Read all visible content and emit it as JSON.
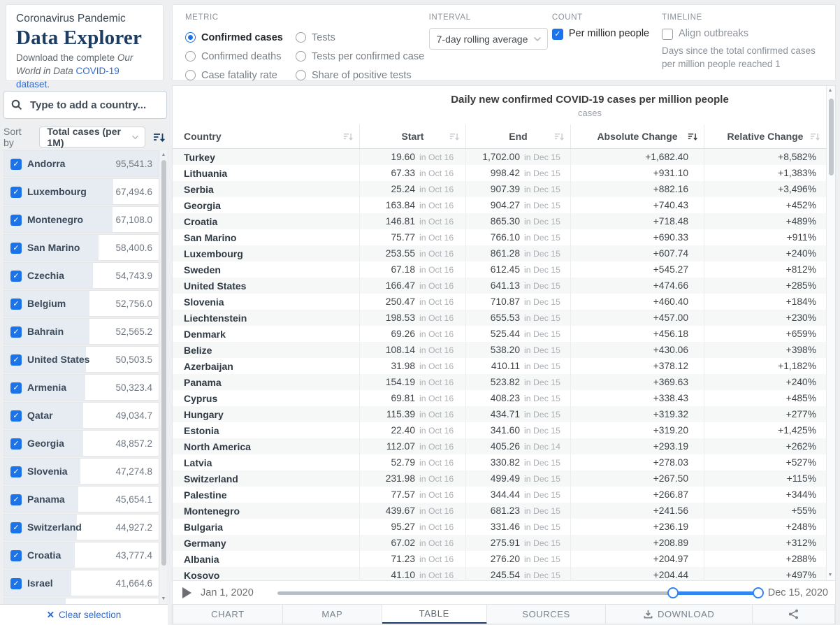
{
  "header": {
    "kicker": "Coronavirus Pandemic",
    "title": "Data Explorer",
    "subtitle": {
      "prefix": "Download the complete ",
      "brand": "Our World in Data",
      "link": "COVID-19 dataset",
      "suffix": "."
    }
  },
  "controls": {
    "metric": {
      "label": "METRIC",
      "options": [
        {
          "label": "Confirmed cases",
          "selected": true
        },
        {
          "label": "Confirmed deaths",
          "selected": false
        },
        {
          "label": "Case fatality rate",
          "selected": false
        },
        {
          "label": "Tests",
          "selected": false
        },
        {
          "label": "Tests per confirmed case",
          "selected": false
        },
        {
          "label": "Share of positive tests",
          "selected": false
        }
      ]
    },
    "interval": {
      "label": "INTERVAL",
      "value": "7-day rolling average"
    },
    "count": {
      "label": "COUNT",
      "checkbox": "Per million people",
      "checked": true
    },
    "timeline": {
      "label": "TIMELINE",
      "checkbox": "Align outbreaks",
      "checked": false,
      "description": "Days since the total confirmed cases per million people reached 1"
    }
  },
  "sidebar": {
    "search_placeholder": "Type to add a country...",
    "sort_by_label": "Sort by",
    "sort_value": "Total cases (per 1M)",
    "countries": [
      {
        "name": "Andorra",
        "value": "95,541.3",
        "checked": true
      },
      {
        "name": "Luxembourg",
        "value": "67,494.6",
        "checked": true
      },
      {
        "name": "Montenegro",
        "value": "67,108.0",
        "checked": true
      },
      {
        "name": "San Marino",
        "value": "58,400.6",
        "checked": true
      },
      {
        "name": "Czechia",
        "value": "54,743.9",
        "checked": true
      },
      {
        "name": "Belgium",
        "value": "52,756.0",
        "checked": true
      },
      {
        "name": "Bahrain",
        "value": "52,565.2",
        "checked": true
      },
      {
        "name": "United States",
        "value": "50,503.5",
        "checked": true
      },
      {
        "name": "Armenia",
        "value": "50,323.4",
        "checked": true
      },
      {
        "name": "Qatar",
        "value": "49,034.7",
        "checked": true
      },
      {
        "name": "Georgia",
        "value": "48,857.2",
        "checked": true
      },
      {
        "name": "Slovenia",
        "value": "47,274.8",
        "checked": true
      },
      {
        "name": "Panama",
        "value": "45,654.1",
        "checked": true
      },
      {
        "name": "Switzerland",
        "value": "44,927.2",
        "checked": true
      },
      {
        "name": "Croatia",
        "value": "43,777.4",
        "checked": true
      },
      {
        "name": "Israel",
        "value": "41,664.6",
        "checked": true
      },
      {
        "name": "",
        "value": "",
        "checked": true
      }
    ],
    "clear_selection": "Clear selection"
  },
  "table": {
    "title": "Daily new confirmed COVID-19 cases per million people",
    "subtitle": "cases",
    "columns": [
      "Country",
      "Start",
      "End",
      "Absolute Change",
      "Relative Change"
    ],
    "rows": [
      {
        "country": "Turkey",
        "start": "19.60",
        "start_date": "in Oct 16",
        "end": "1,702.00",
        "end_date": "in Dec 15",
        "abs": "+1,682.40",
        "rel": "+8,582%"
      },
      {
        "country": "Lithuania",
        "start": "67.33",
        "start_date": "in Oct 16",
        "end": "998.42",
        "end_date": "in Dec 15",
        "abs": "+931.10",
        "rel": "+1,383%"
      },
      {
        "country": "Serbia",
        "start": "25.24",
        "start_date": "in Oct 16",
        "end": "907.39",
        "end_date": "in Dec 15",
        "abs": "+882.16",
        "rel": "+3,496%"
      },
      {
        "country": "Georgia",
        "start": "163.84",
        "start_date": "in Oct 16",
        "end": "904.27",
        "end_date": "in Dec 15",
        "abs": "+740.43",
        "rel": "+452%"
      },
      {
        "country": "Croatia",
        "start": "146.81",
        "start_date": "in Oct 16",
        "end": "865.30",
        "end_date": "in Dec 15",
        "abs": "+718.48",
        "rel": "+489%"
      },
      {
        "country": "San Marino",
        "start": "75.77",
        "start_date": "in Oct 16",
        "end": "766.10",
        "end_date": "in Dec 15",
        "abs": "+690.33",
        "rel": "+911%"
      },
      {
        "country": "Luxembourg",
        "start": "253.55",
        "start_date": "in Oct 16",
        "end": "861.28",
        "end_date": "in Dec 15",
        "abs": "+607.74",
        "rel": "+240%"
      },
      {
        "country": "Sweden",
        "start": "67.18",
        "start_date": "in Oct 16",
        "end": "612.45",
        "end_date": "in Dec 15",
        "abs": "+545.27",
        "rel": "+812%"
      },
      {
        "country": "United States",
        "start": "166.47",
        "start_date": "in Oct 16",
        "end": "641.13",
        "end_date": "in Dec 15",
        "abs": "+474.66",
        "rel": "+285%"
      },
      {
        "country": "Slovenia",
        "start": "250.47",
        "start_date": "in Oct 16",
        "end": "710.87",
        "end_date": "in Dec 15",
        "abs": "+460.40",
        "rel": "+184%"
      },
      {
        "country": "Liechtenstein",
        "start": "198.53",
        "start_date": "in Oct 16",
        "end": "655.53",
        "end_date": "in Dec 15",
        "abs": "+457.00",
        "rel": "+230%"
      },
      {
        "country": "Denmark",
        "start": "69.26",
        "start_date": "in Oct 16",
        "end": "525.44",
        "end_date": "in Dec 15",
        "abs": "+456.18",
        "rel": "+659%"
      },
      {
        "country": "Belize",
        "start": "108.14",
        "start_date": "in Oct 16",
        "end": "538.20",
        "end_date": "in Dec 15",
        "abs": "+430.06",
        "rel": "+398%"
      },
      {
        "country": "Azerbaijan",
        "start": "31.98",
        "start_date": "in Oct 16",
        "end": "410.11",
        "end_date": "in Dec 15",
        "abs": "+378.12",
        "rel": "+1,182%"
      },
      {
        "country": "Panama",
        "start": "154.19",
        "start_date": "in Oct 16",
        "end": "523.82",
        "end_date": "in Dec 15",
        "abs": "+369.63",
        "rel": "+240%"
      },
      {
        "country": "Cyprus",
        "start": "69.81",
        "start_date": "in Oct 16",
        "end": "408.23",
        "end_date": "in Dec 15",
        "abs": "+338.43",
        "rel": "+485%"
      },
      {
        "country": "Hungary",
        "start": "115.39",
        "start_date": "in Oct 16",
        "end": "434.71",
        "end_date": "in Dec 15",
        "abs": "+319.32",
        "rel": "+277%"
      },
      {
        "country": "Estonia",
        "start": "22.40",
        "start_date": "in Oct 16",
        "end": "341.60",
        "end_date": "in Dec 15",
        "abs": "+319.20",
        "rel": "+1,425%"
      },
      {
        "country": "North America",
        "start": "112.07",
        "start_date": "in Oct 16",
        "end": "405.26",
        "end_date": "in Dec 14",
        "abs": "+293.19",
        "rel": "+262%"
      },
      {
        "country": "Latvia",
        "start": "52.79",
        "start_date": "in Oct 16",
        "end": "330.82",
        "end_date": "in Dec 15",
        "abs": "+278.03",
        "rel": "+527%"
      },
      {
        "country": "Switzerland",
        "start": "231.98",
        "start_date": "in Oct 16",
        "end": "499.49",
        "end_date": "in Dec 15",
        "abs": "+267.50",
        "rel": "+115%"
      },
      {
        "country": "Palestine",
        "start": "77.57",
        "start_date": "in Oct 16",
        "end": "344.44",
        "end_date": "in Dec 15",
        "abs": "+266.87",
        "rel": "+344%"
      },
      {
        "country": "Montenegro",
        "start": "439.67",
        "start_date": "in Oct 16",
        "end": "681.23",
        "end_date": "in Dec 15",
        "abs": "+241.56",
        "rel": "+55%"
      },
      {
        "country": "Bulgaria",
        "start": "95.27",
        "start_date": "in Oct 16",
        "end": "331.46",
        "end_date": "in Dec 15",
        "abs": "+236.19",
        "rel": "+248%"
      },
      {
        "country": "Germany",
        "start": "67.02",
        "start_date": "in Oct 16",
        "end": "275.91",
        "end_date": "in Dec 15",
        "abs": "+208.89",
        "rel": "+312%"
      },
      {
        "country": "Albania",
        "start": "71.23",
        "start_date": "in Oct 16",
        "end": "276.20",
        "end_date": "in Dec 15",
        "abs": "+204.97",
        "rel": "+288%"
      },
      {
        "country": "Kosovo",
        "start": "41.10",
        "start_date": "in Oct 16",
        "end": "245.54",
        "end_date": "in Dec 15",
        "abs": "+204.44",
        "rel": "+497%"
      }
    ]
  },
  "timeline_bar": {
    "start_label": "Jan 1, 2020",
    "end_label": "Dec 15, 2020"
  },
  "tabs": [
    {
      "label": "CHART",
      "active": false
    },
    {
      "label": "MAP",
      "active": false
    },
    {
      "label": "TABLE",
      "active": true
    },
    {
      "label": "SOURCES",
      "active": false
    },
    {
      "label": "DOWNLOAD",
      "active": false
    },
    {
      "label": "",
      "active": false
    }
  ],
  "colors": {
    "accent_blue": "#1a73e8",
    "slider_blue": "#3385f0",
    "navy": "#1d3d63",
    "link_blue": "#2b6cd9"
  }
}
